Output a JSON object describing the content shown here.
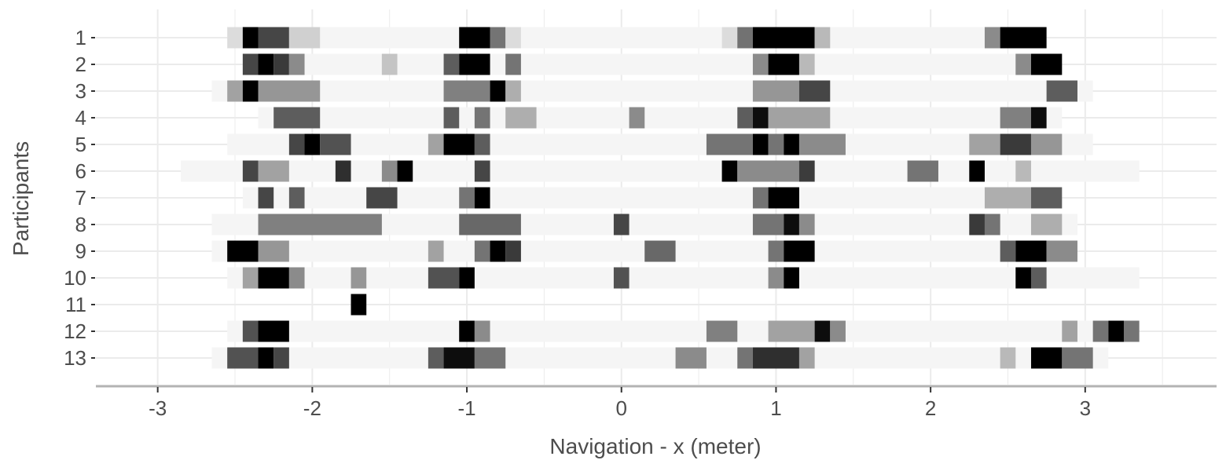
{
  "chart_data": {
    "type": "heatmap",
    "title": "",
    "xlabel": "Navigation - x (meter)",
    "ylabel": "Participants",
    "xlim": [
      -3.4,
      3.85
    ],
    "x_ticks": [
      -3,
      -2,
      -1,
      0,
      1,
      2,
      3
    ],
    "x_tick_labels": [
      "-3",
      "-2",
      "-1",
      "0",
      "1",
      "2",
      "3"
    ],
    "categories": [
      "1",
      "2",
      "3",
      "4",
      "5",
      "6",
      "7",
      "8",
      "9",
      "10",
      "11",
      "12",
      "13"
    ],
    "grid": true,
    "colors": {
      "high": "#000000",
      "low": "#ffffff",
      "grid": "#ebebeb",
      "axis": "#b3b3b3",
      "text": "#4d4d4d"
    },
    "series": [
      {
        "participant": "1",
        "range": [
          -2.55,
          2.75
        ],
        "segments": [
          [
            -2.55,
            -2.45,
            0.15
          ],
          [
            -2.45,
            -2.35,
            1.0
          ],
          [
            -2.35,
            -2.15,
            0.8
          ],
          [
            -2.15,
            -1.95,
            0.2
          ],
          [
            -1.05,
            -0.85,
            1.0
          ],
          [
            -0.85,
            -0.75,
            0.6
          ],
          [
            -0.75,
            -0.65,
            0.15
          ],
          [
            0.65,
            0.85,
            0.15
          ],
          [
            0.75,
            0.85,
            0.6
          ],
          [
            0.85,
            1.25,
            1.0
          ],
          [
            1.25,
            1.35,
            0.3
          ],
          [
            2.35,
            2.45,
            0.5
          ],
          [
            2.45,
            2.75,
            1.0
          ]
        ]
      },
      {
        "participant": "2",
        "range": [
          -2.45,
          2.85
        ],
        "segments": [
          [
            -2.45,
            -2.35,
            0.8
          ],
          [
            -2.35,
            -2.25,
            1.0
          ],
          [
            -2.25,
            -2.15,
            0.85
          ],
          [
            -2.15,
            -2.05,
            0.5
          ],
          [
            -1.55,
            -1.45,
            0.25
          ],
          [
            -1.15,
            -1.05,
            0.7
          ],
          [
            -1.05,
            -0.85,
            1.0
          ],
          [
            -0.75,
            -0.65,
            0.6
          ],
          [
            0.85,
            0.95,
            0.5
          ],
          [
            0.95,
            1.15,
            1.0
          ],
          [
            1.15,
            1.25,
            0.3
          ],
          [
            2.55,
            2.65,
            0.5
          ],
          [
            2.65,
            2.85,
            1.0
          ]
        ]
      },
      {
        "participant": "3",
        "range": [
          -2.65,
          3.05
        ],
        "segments": [
          [
            -2.55,
            -2.45,
            0.4
          ],
          [
            -2.45,
            -2.35,
            1.0
          ],
          [
            -2.35,
            -1.95,
            0.45
          ],
          [
            -1.15,
            -0.85,
            0.55
          ],
          [
            -0.85,
            -0.75,
            1.0
          ],
          [
            -0.75,
            -0.65,
            0.35
          ],
          [
            0.85,
            1.15,
            0.45
          ],
          [
            1.15,
            1.35,
            0.8
          ],
          [
            2.75,
            2.95,
            0.7
          ]
        ]
      },
      {
        "participant": "4",
        "range": [
          -2.35,
          2.85
        ],
        "segments": [
          [
            -2.25,
            -1.95,
            0.7
          ],
          [
            -1.15,
            -1.05,
            0.7
          ],
          [
            -0.95,
            -0.85,
            0.6
          ],
          [
            -0.75,
            -0.55,
            0.35
          ],
          [
            0.05,
            0.15,
            0.5
          ],
          [
            0.75,
            0.85,
            0.7
          ],
          [
            0.85,
            0.95,
            0.95
          ],
          [
            0.95,
            1.35,
            0.4
          ],
          [
            2.45,
            2.65,
            0.55
          ],
          [
            2.65,
            2.75,
            0.95
          ]
        ]
      },
      {
        "participant": "5",
        "range": [
          -2.55,
          3.05
        ],
        "segments": [
          [
            -2.15,
            -2.05,
            0.8
          ],
          [
            -2.05,
            -1.95,
            1.0
          ],
          [
            -1.95,
            -1.75,
            0.75
          ],
          [
            -1.25,
            -1.15,
            0.4
          ],
          [
            -1.15,
            -0.95,
            1.0
          ],
          [
            -0.95,
            -0.85,
            0.7
          ],
          [
            0.55,
            0.85,
            0.6
          ],
          [
            0.85,
            0.95,
            1.0
          ],
          [
            0.95,
            1.05,
            0.6
          ],
          [
            1.05,
            1.15,
            1.0
          ],
          [
            1.15,
            1.45,
            0.5
          ],
          [
            2.25,
            2.45,
            0.4
          ],
          [
            2.45,
            2.65,
            0.85
          ],
          [
            2.65,
            2.85,
            0.45
          ]
        ]
      },
      {
        "participant": "6",
        "range": [
          -2.85,
          3.35
        ],
        "segments": [
          [
            -2.45,
            -2.35,
            0.8
          ],
          [
            -2.35,
            -2.15,
            0.4
          ],
          [
            -1.85,
            -1.75,
            0.9
          ],
          [
            -1.55,
            -1.45,
            0.5
          ],
          [
            -1.45,
            -1.35,
            1.0
          ],
          [
            -0.95,
            -0.85,
            0.8
          ],
          [
            0.65,
            0.75,
            1.0
          ],
          [
            0.75,
            1.25,
            0.5
          ],
          [
            1.15,
            1.25,
            0.8
          ],
          [
            1.85,
            2.05,
            0.6
          ],
          [
            2.25,
            2.35,
            1.0
          ],
          [
            2.55,
            2.65,
            0.3
          ]
        ]
      },
      {
        "participant": "7",
        "range": [
          -2.45,
          2.85
        ],
        "segments": [
          [
            -2.35,
            -2.25,
            0.8
          ],
          [
            -2.15,
            -2.05,
            0.7
          ],
          [
            -1.65,
            -1.45,
            0.8
          ],
          [
            -1.05,
            -0.95,
            0.6
          ],
          [
            -0.95,
            -0.85,
            1.0
          ],
          [
            0.85,
            0.95,
            0.6
          ],
          [
            0.95,
            1.15,
            1.0
          ],
          [
            2.35,
            2.65,
            0.35
          ],
          [
            2.65,
            2.85,
            0.7
          ]
        ]
      },
      {
        "participant": "8",
        "range": [
          -2.65,
          2.95
        ],
        "segments": [
          [
            -2.35,
            -1.55,
            0.55
          ],
          [
            -1.05,
            -0.65,
            0.65
          ],
          [
            -0.05,
            0.05,
            0.8
          ],
          [
            0.85,
            1.05,
            0.6
          ],
          [
            1.05,
            1.15,
            0.95
          ],
          [
            1.15,
            1.25,
            0.5
          ],
          [
            2.25,
            2.35,
            0.85
          ],
          [
            2.35,
            2.45,
            0.6
          ],
          [
            2.65,
            2.85,
            0.35
          ]
        ]
      },
      {
        "participant": "9",
        "range": [
          -2.65,
          2.95
        ],
        "segments": [
          [
            -2.55,
            -2.35,
            1.0
          ],
          [
            -2.35,
            -2.15,
            0.45
          ],
          [
            -1.25,
            -1.15,
            0.4
          ],
          [
            -0.95,
            -0.85,
            0.6
          ],
          [
            -0.85,
            -0.75,
            1.0
          ],
          [
            -0.75,
            -0.65,
            0.85
          ],
          [
            0.15,
            0.35,
            0.65
          ],
          [
            0.95,
            1.05,
            0.6
          ],
          [
            1.05,
            1.25,
            1.0
          ],
          [
            2.45,
            2.55,
            0.7
          ],
          [
            2.55,
            2.75,
            1.0
          ],
          [
            2.75,
            2.95,
            0.5
          ]
        ]
      },
      {
        "participant": "10",
        "range": [
          -2.55,
          3.35
        ],
        "segments": [
          [
            -2.45,
            -2.35,
            0.4
          ],
          [
            -2.35,
            -2.15,
            1.0
          ],
          [
            -2.15,
            -2.05,
            0.5
          ],
          [
            -1.75,
            -1.65,
            0.45
          ],
          [
            -1.25,
            -1.05,
            0.75
          ],
          [
            -1.05,
            -0.95,
            1.0
          ],
          [
            -0.05,
            0.05,
            0.75
          ],
          [
            0.95,
            1.05,
            0.5
          ],
          [
            1.05,
            1.15,
            1.0
          ],
          [
            2.55,
            2.65,
            1.0
          ],
          [
            2.65,
            2.75,
            0.7
          ]
        ]
      },
      {
        "participant": "11",
        "range": [
          -1.75,
          -1.65
        ],
        "segments": [
          [
            -1.75,
            -1.65,
            1.0
          ]
        ]
      },
      {
        "participant": "12",
        "range": [
          -2.55,
          3.35
        ],
        "segments": [
          [
            -2.45,
            -2.35,
            0.75
          ],
          [
            -2.35,
            -2.15,
            1.0
          ],
          [
            -1.05,
            -0.95,
            1.0
          ],
          [
            -0.95,
            -0.85,
            0.5
          ],
          [
            0.55,
            0.75,
            0.55
          ],
          [
            0.95,
            1.25,
            0.4
          ],
          [
            1.25,
            1.35,
            0.95
          ],
          [
            1.35,
            1.45,
            0.5
          ],
          [
            2.85,
            2.95,
            0.4
          ],
          [
            3.05,
            3.15,
            0.6
          ],
          [
            3.15,
            3.25,
            1.0
          ],
          [
            3.25,
            3.35,
            0.6
          ]
        ]
      },
      {
        "participant": "13",
        "range": [
          -2.65,
          3.15
        ],
        "segments": [
          [
            -2.55,
            -2.35,
            0.75
          ],
          [
            -2.35,
            -2.25,
            1.0
          ],
          [
            -2.25,
            -2.15,
            0.8
          ],
          [
            -1.25,
            -1.15,
            0.7
          ],
          [
            -1.15,
            -0.95,
            0.95
          ],
          [
            -0.95,
            -0.75,
            0.6
          ],
          [
            0.35,
            0.55,
            0.5
          ],
          [
            0.75,
            0.85,
            0.6
          ],
          [
            0.85,
            1.15,
            0.9
          ],
          [
            1.15,
            1.25,
            0.4
          ],
          [
            2.45,
            2.55,
            0.3
          ],
          [
            2.65,
            2.85,
            1.0
          ],
          [
            2.85,
            3.05,
            0.6
          ]
        ]
      }
    ]
  }
}
